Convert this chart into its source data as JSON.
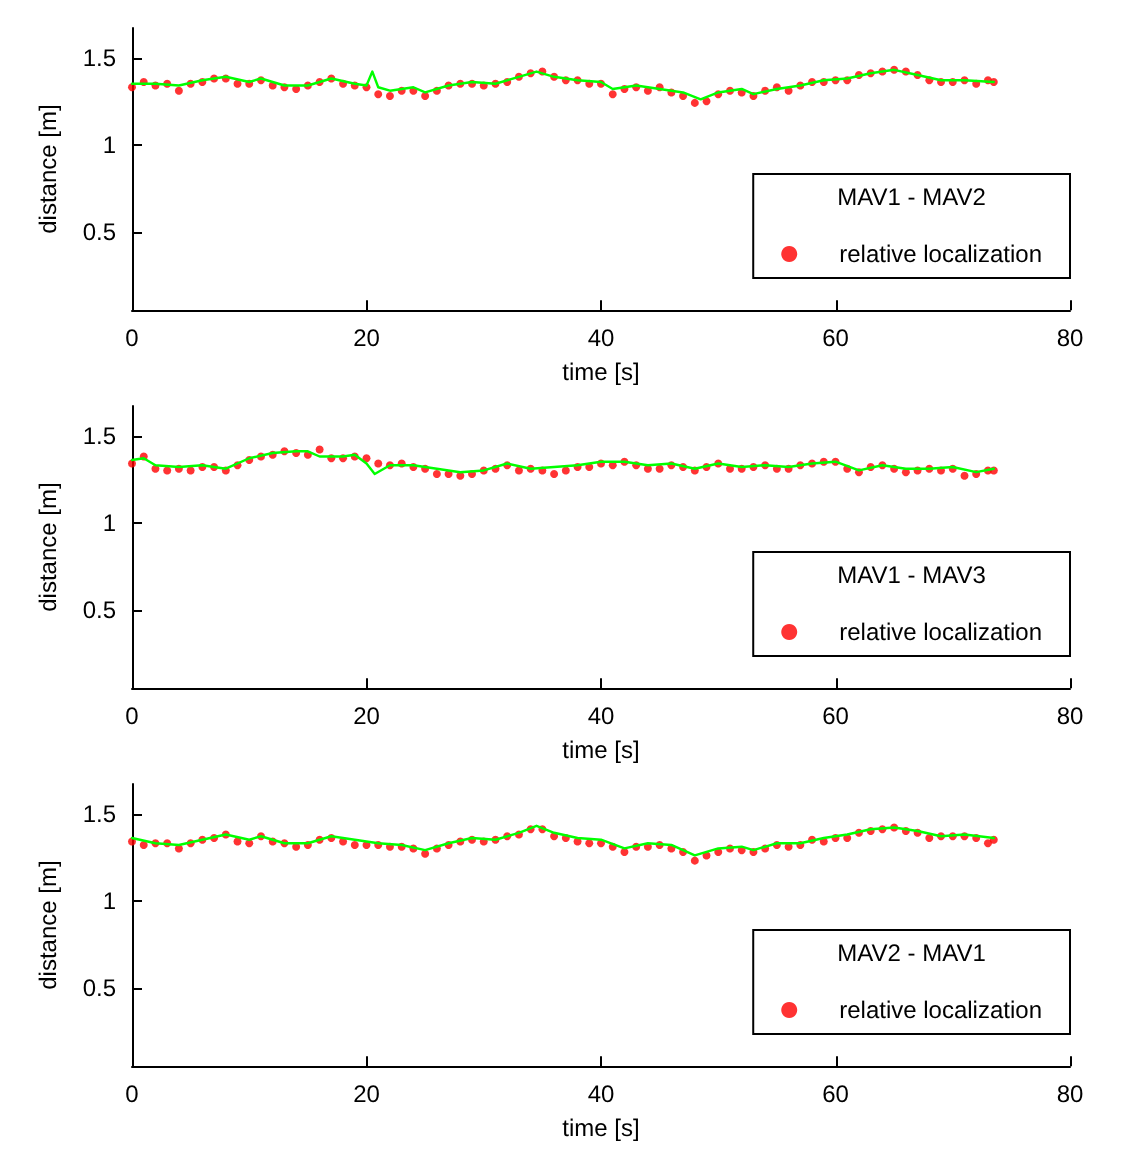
{
  "chart_data": [
    {
      "type": "scatter",
      "xlabel": "time [s]",
      "ylabel": "distance [m]",
      "legend_title": "MAV1 - MAV2",
      "legend": "bottom right",
      "grid": false,
      "marker": "circle",
      "xlim": [
        0,
        80
      ],
      "xticks": [
        0,
        20,
        40,
        60,
        80
      ],
      "ylim": [
        0.05,
        1.67
      ],
      "yticks": [
        0.5,
        1,
        1.5
      ],
      "series": [
        {
          "name": "relative localization",
          "color": "#ff0000",
          "x": [
            0,
            1,
            2,
            3,
            4,
            5,
            6,
            7,
            8,
            9,
            10,
            11,
            12,
            13,
            14,
            15,
            16,
            17,
            18,
            19,
            20,
            21,
            22,
            23,
            24,
            25,
            26,
            27,
            28,
            29,
            30,
            31,
            32,
            33,
            34,
            35,
            36,
            37,
            38,
            39,
            40,
            41,
            42,
            43,
            44,
            45,
            46,
            47,
            48,
            49,
            50,
            51,
            52,
            53,
            54,
            55,
            56,
            57,
            58,
            59,
            60,
            61,
            62,
            63,
            64,
            65,
            66,
            67,
            68,
            69,
            70,
            71,
            72,
            73,
            73.5
          ],
          "values": [
            1.33,
            1.36,
            1.34,
            1.35,
            1.31,
            1.35,
            1.36,
            1.38,
            1.38,
            1.35,
            1.35,
            1.37,
            1.34,
            1.33,
            1.32,
            1.34,
            1.36,
            1.38,
            1.35,
            1.34,
            1.33,
            1.29,
            1.28,
            1.31,
            1.31,
            1.28,
            1.31,
            1.34,
            1.35,
            1.35,
            1.34,
            1.35,
            1.36,
            1.39,
            1.41,
            1.42,
            1.39,
            1.37,
            1.37,
            1.35,
            1.35,
            1.29,
            1.32,
            1.33,
            1.31,
            1.33,
            1.3,
            1.28,
            1.24,
            1.25,
            1.29,
            1.31,
            1.3,
            1.28,
            1.31,
            1.33,
            1.31,
            1.34,
            1.36,
            1.36,
            1.37,
            1.37,
            1.4,
            1.41,
            1.42,
            1.43,
            1.42,
            1.4,
            1.37,
            1.36,
            1.36,
            1.37,
            1.35,
            1.37,
            1.36
          ]
        },
        {
          "type": "line",
          "color": "#00ff00",
          "marker": "none",
          "x": [
            0,
            2,
            4,
            6,
            8,
            10,
            11,
            13,
            15,
            17,
            19,
            20,
            20.5,
            21,
            22,
            24,
            25,
            27,
            29,
            31,
            33,
            34.5,
            36,
            38,
            40,
            41,
            43,
            45,
            47,
            48.5,
            50,
            52,
            53,
            55,
            57,
            59,
            61,
            63,
            65,
            67,
            69,
            71,
            73.5
          ],
          "values": [
            1.35,
            1.35,
            1.34,
            1.37,
            1.39,
            1.36,
            1.38,
            1.34,
            1.34,
            1.38,
            1.35,
            1.34,
            1.42,
            1.33,
            1.31,
            1.33,
            1.3,
            1.34,
            1.36,
            1.35,
            1.39,
            1.42,
            1.39,
            1.37,
            1.36,
            1.32,
            1.34,
            1.32,
            1.3,
            1.26,
            1.3,
            1.32,
            1.29,
            1.32,
            1.34,
            1.37,
            1.38,
            1.41,
            1.43,
            1.4,
            1.37,
            1.37,
            1.36
          ]
        }
      ]
    },
    {
      "type": "scatter",
      "xlabel": "time [s]",
      "ylabel": "distance [m]",
      "legend_title": "MAV1 - MAV3",
      "legend": "bottom right",
      "grid": false,
      "marker": "circle",
      "xlim": [
        0,
        80
      ],
      "xticks": [
        0,
        20,
        40,
        60,
        80
      ],
      "ylim": [
        0.05,
        1.67
      ],
      "yticks": [
        0.5,
        1,
        1.5
      ],
      "series": [
        {
          "name": "relative localization",
          "color": "#ff0000",
          "x": [
            0,
            1,
            2,
            3,
            4,
            5,
            6,
            7,
            8,
            9,
            10,
            11,
            12,
            13,
            14,
            15,
            16,
            17,
            18,
            19,
            20,
            21,
            22,
            23,
            24,
            25,
            26,
            27,
            28,
            29,
            30,
            31,
            32,
            33,
            34,
            35,
            36,
            37,
            38,
            39,
            40,
            41,
            42,
            43,
            44,
            45,
            46,
            47,
            48,
            49,
            50,
            51,
            52,
            53,
            54,
            55,
            56,
            57,
            58,
            59,
            60,
            61,
            62,
            63,
            64,
            65,
            66,
            67,
            68,
            69,
            70,
            71,
            72,
            73,
            73.5
          ],
          "values": [
            1.34,
            1.38,
            1.31,
            1.3,
            1.31,
            1.3,
            1.32,
            1.32,
            1.3,
            1.33,
            1.36,
            1.38,
            1.39,
            1.41,
            1.4,
            1.39,
            1.42,
            1.37,
            1.37,
            1.38,
            1.37,
            1.34,
            1.33,
            1.34,
            1.32,
            1.31,
            1.28,
            1.28,
            1.27,
            1.28,
            1.3,
            1.31,
            1.33,
            1.3,
            1.31,
            1.3,
            1.28,
            1.3,
            1.32,
            1.32,
            1.34,
            1.33,
            1.35,
            1.33,
            1.31,
            1.31,
            1.33,
            1.32,
            1.3,
            1.32,
            1.34,
            1.31,
            1.31,
            1.32,
            1.33,
            1.31,
            1.31,
            1.33,
            1.34,
            1.35,
            1.35,
            1.31,
            1.29,
            1.32,
            1.33,
            1.31,
            1.29,
            1.3,
            1.31,
            1.3,
            1.31,
            1.27,
            1.28,
            1.3,
            1.3
          ]
        },
        {
          "type": "line",
          "color": "#00ff00",
          "marker": "none",
          "x": [
            0,
            1,
            2,
            4,
            6,
            8,
            10,
            12,
            14,
            15,
            16,
            18,
            19,
            20,
            20.7,
            22,
            24,
            26,
            28,
            30,
            32,
            34,
            36,
            38,
            40,
            42,
            44,
            46,
            48,
            50,
            52,
            54,
            56,
            58,
            60,
            62,
            64,
            66,
            68,
            70,
            72,
            73.5
          ],
          "values": [
            1.36,
            1.37,
            1.33,
            1.32,
            1.33,
            1.31,
            1.37,
            1.4,
            1.41,
            1.41,
            1.38,
            1.38,
            1.39,
            1.34,
            1.28,
            1.33,
            1.33,
            1.31,
            1.29,
            1.3,
            1.34,
            1.31,
            1.32,
            1.33,
            1.35,
            1.35,
            1.33,
            1.34,
            1.31,
            1.34,
            1.32,
            1.33,
            1.32,
            1.34,
            1.35,
            1.3,
            1.33,
            1.31,
            1.31,
            1.32,
            1.29,
            1.31
          ]
        }
      ]
    },
    {
      "type": "scatter",
      "xlabel": "time [s]",
      "ylabel": "distance [m]",
      "legend_title": "MAV2 - MAV1",
      "legend": "bottom right",
      "grid": false,
      "marker": "circle",
      "xlim": [
        0,
        80
      ],
      "xticks": [
        0,
        20,
        40,
        60,
        80
      ],
      "ylim": [
        0.05,
        1.67
      ],
      "yticks": [
        0.5,
        1,
        1.5
      ],
      "series": [
        {
          "name": "relative localization",
          "color": "#ff0000",
          "x": [
            0,
            1,
            2,
            3,
            4,
            5,
            6,
            7,
            8,
            9,
            10,
            11,
            12,
            13,
            14,
            15,
            16,
            17,
            18,
            19,
            20,
            21,
            22,
            23,
            24,
            25,
            26,
            27,
            28,
            29,
            30,
            31,
            32,
            33,
            34,
            35,
            36,
            37,
            38,
            39,
            40,
            41,
            42,
            43,
            44,
            45,
            46,
            47,
            48,
            49,
            50,
            51,
            52,
            53,
            54,
            55,
            56,
            57,
            58,
            59,
            60,
            61,
            62,
            63,
            64,
            65,
            66,
            67,
            68,
            69,
            70,
            71,
            72,
            73,
            73.5
          ],
          "values": [
            1.34,
            1.32,
            1.33,
            1.33,
            1.3,
            1.33,
            1.35,
            1.36,
            1.38,
            1.34,
            1.33,
            1.37,
            1.34,
            1.33,
            1.31,
            1.32,
            1.35,
            1.36,
            1.34,
            1.32,
            1.32,
            1.32,
            1.31,
            1.31,
            1.3,
            1.27,
            1.3,
            1.32,
            1.34,
            1.35,
            1.34,
            1.35,
            1.37,
            1.38,
            1.41,
            1.41,
            1.37,
            1.36,
            1.34,
            1.33,
            1.33,
            1.31,
            1.28,
            1.31,
            1.31,
            1.32,
            1.3,
            1.28,
            1.23,
            1.26,
            1.28,
            1.3,
            1.29,
            1.28,
            1.3,
            1.32,
            1.31,
            1.32,
            1.35,
            1.34,
            1.36,
            1.36,
            1.39,
            1.4,
            1.41,
            1.42,
            1.4,
            1.39,
            1.36,
            1.37,
            1.37,
            1.37,
            1.36,
            1.33,
            1.35
          ]
        },
        {
          "type": "line",
          "color": "#00ff00",
          "marker": "none",
          "x": [
            0,
            2,
            4,
            6,
            8,
            10,
            11,
            13,
            15,
            17,
            19,
            21,
            23,
            25,
            27,
            29,
            31,
            33,
            34.5,
            36,
            38,
            40,
            42,
            44,
            46,
            48,
            50,
            52,
            53,
            55,
            57,
            59,
            61,
            63,
            65,
            67,
            69,
            71,
            73.5
          ],
          "values": [
            1.36,
            1.33,
            1.32,
            1.35,
            1.38,
            1.35,
            1.37,
            1.33,
            1.33,
            1.37,
            1.35,
            1.33,
            1.32,
            1.29,
            1.33,
            1.36,
            1.35,
            1.39,
            1.43,
            1.39,
            1.36,
            1.35,
            1.3,
            1.33,
            1.32,
            1.26,
            1.3,
            1.31,
            1.29,
            1.33,
            1.33,
            1.36,
            1.38,
            1.41,
            1.42,
            1.4,
            1.37,
            1.38,
            1.36
          ]
        }
      ]
    }
  ]
}
